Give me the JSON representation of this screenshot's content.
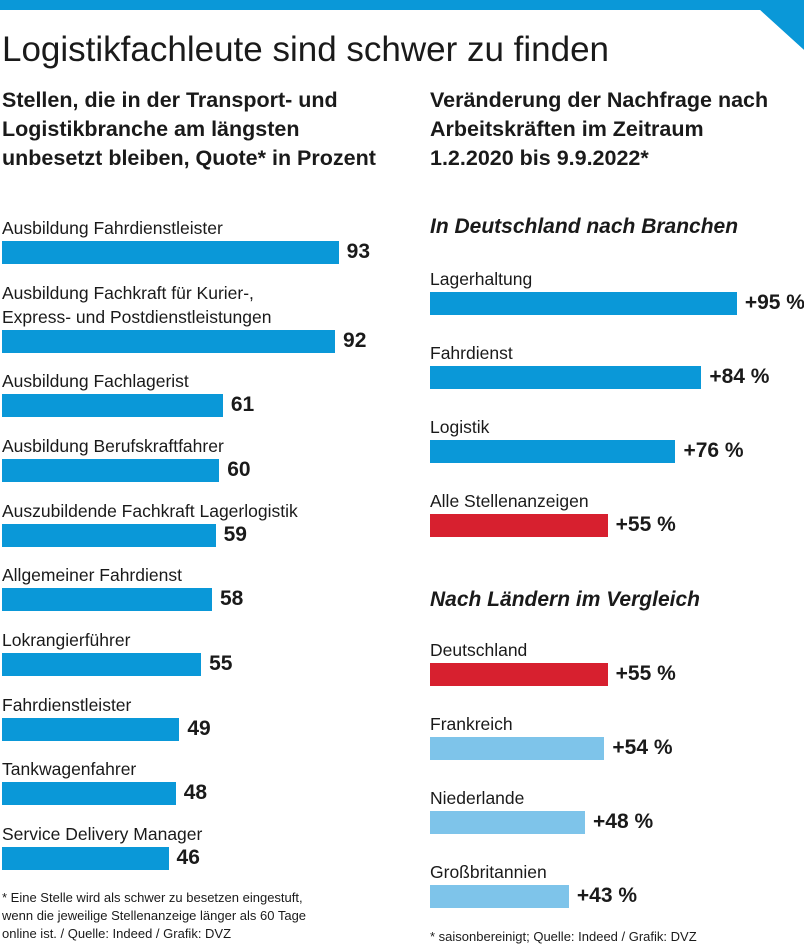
{
  "title": "Logistikfachleute sind schwer zu finden",
  "colors": {
    "primary": "#0a98d8",
    "highlight": "#d7202f",
    "light": "#7ec4ea"
  },
  "chart_data": [
    {
      "type": "bar",
      "orientation": "horizontal",
      "title": "Stellen, die in der Transport- und\nLogistikbranche am längsten\nunbesetzt bleiben, Quote* in Prozent",
      "categories": [
        "Ausbildung Fahrdienstleister",
        "Ausbildung Fachkraft für Kurier-,\nExpress- und Postdienstleistungen",
        "Ausbildung Fachlagerist",
        "Ausbildung Berufskraftfahrer",
        "Auszubildende Fachkraft Lagerlogistik",
        "Allgemeiner Fahrdienst",
        "Lokrangierführer",
        "Fahrdienstleister",
        "Tankwagenfahrer",
        "Service Delivery Manager"
      ],
      "values": [
        93,
        92,
        61,
        60,
        59,
        58,
        55,
        49,
        48,
        46
      ],
      "value_labels": [
        "93",
        "92",
        "61",
        "60",
        "59",
        "58",
        "55",
        "49",
        "48",
        "46"
      ],
      "colors": [
        "primary",
        "primary",
        "primary",
        "primary",
        "primary",
        "primary",
        "primary",
        "primary",
        "primary",
        "primary"
      ],
      "footnote": "* Eine Stelle wird als schwer zu besetzen eingestuft,\nwenn die jeweilige Stellenanzeige länger als 60 Tage\nonline ist. / Quelle: Indeed / Grafik: DVZ"
    },
    {
      "type": "bar",
      "orientation": "horizontal",
      "title": "Veränderung der Nachfrage nach\nArbeitskräften im Zeitraum\n1.2.2020 bis 9.9.2022*",
      "groups": [
        {
          "heading": "In Deutschland nach Branchen",
          "categories": [
            "Lagerhaltung",
            "Fahrdienst",
            "Logistik",
            "Alle Stellenanzeigen"
          ],
          "values": [
            95,
            84,
            76,
            55
          ],
          "value_labels": [
            "+95 %",
            "+84 %",
            "+76 %",
            "+55 %"
          ],
          "colors": [
            "primary",
            "primary",
            "primary",
            "highlight"
          ]
        },
        {
          "heading": "Nach Ländern im Vergleich",
          "categories": [
            "Deutschland",
            "Frankreich",
            "Niederlande",
            "Großbritannien"
          ],
          "values": [
            55,
            54,
            48,
            43
          ],
          "value_labels": [
            "+55 %",
            "+54 %",
            "+48 %",
            "+43 %"
          ],
          "colors": [
            "highlight",
            "light",
            "light",
            "light"
          ]
        }
      ],
      "footnote": "* saisonbereinigt; Quelle: Indeed / Grafik: DVZ"
    }
  ]
}
